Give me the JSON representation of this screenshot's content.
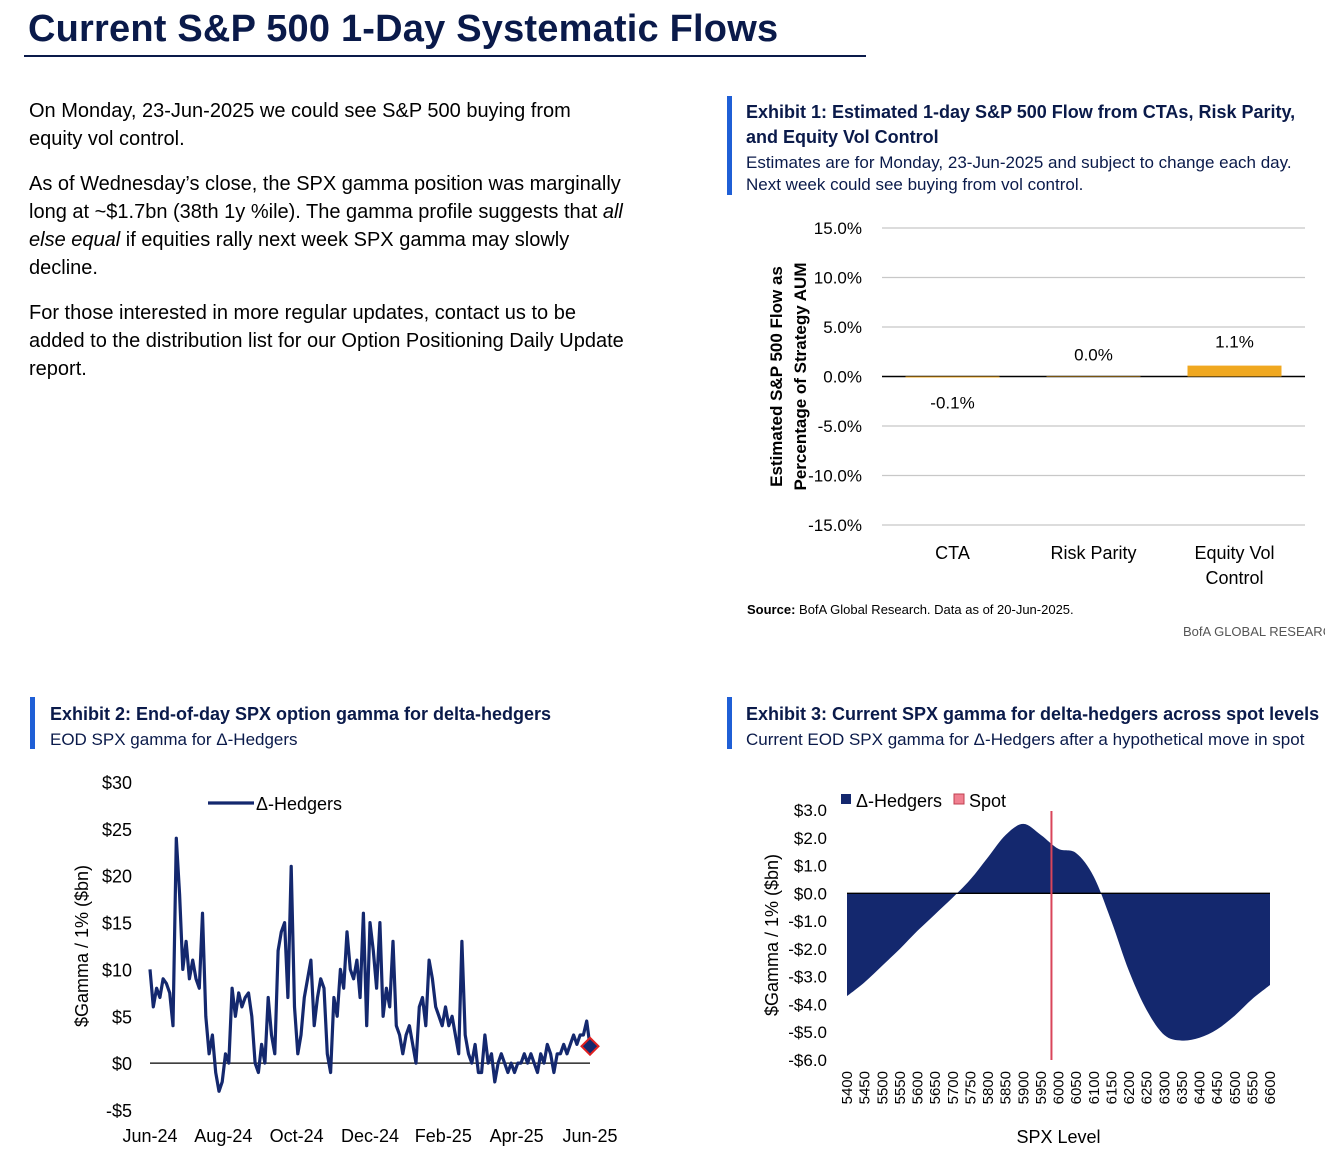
{
  "page": {
    "title": "Current S&P 500 1-Day Systematic Flows",
    "paragraphs": [
      {
        "text": "On Monday, 23-Jun-2025 we could see S&P 500 buying from equity vol control."
      },
      {
        "before": "As of Wednesday’s close, the SPX gamma position was marginally long at ~$1.7bn (38th 1y %ile).  The gamma profile suggests that ",
        "italic": "all else equal",
        "after": " if equities rally next week SPX gamma may slowly decline."
      },
      {
        "text": "For those interested in more regular updates, contact us to be added to the distribution list for our Option Positioning Daily Update report."
      }
    ]
  },
  "exhibit1": {
    "heading": "Exhibit 1: Estimated 1-day S&P 500 Flow from CTAs, Risk Parity, and Equity Vol Control",
    "subheading": "Estimates are for Monday, 23-Jun-2025 and subject to change each day. Next week could see buying from vol control.",
    "source_label": "Source:",
    "source_text": "BofA Global Research.  Data as of 20-Jun-2025.",
    "brand": "BofA GLOBAL RESEARCH"
  },
  "exhibit2": {
    "heading": "Exhibit 2: End-of-day SPX option gamma for delta-hedgers",
    "subheading": "EOD SPX gamma for Δ-Hedgers"
  },
  "exhibit3": {
    "heading": "Exhibit 3: Current SPX gamma for delta-hedgers across spot levels",
    "subheading": "Current EOD SPX gamma for Δ-Hedgers after a hypothetical move in spot"
  },
  "colors": {
    "navy": "#14286e",
    "accent_blue": "#1f5fd6",
    "bar_orange": "#f0a820",
    "spot_red": "#d9455a",
    "marker_red": "#e02020",
    "grid": "#c8c8c8"
  },
  "chart_data": [
    {
      "type": "bar",
      "categories": [
        "CTA",
        "Risk Parity",
        "Equity Vol Control"
      ],
      "category_labels": [
        [
          "CTA"
        ],
        [
          "Risk Parity"
        ],
        [
          "Equity Vol",
          "Control"
        ]
      ],
      "values": [
        -0.1,
        0.0,
        1.1
      ],
      "data_labels": [
        "-0.1%",
        "0.0%",
        "1.1%"
      ],
      "ylabel_lines": [
        "Estimated S&P 500 Flow as",
        "Percentage  of Strategy AUM"
      ],
      "ylim": [
        -15,
        15
      ],
      "yticks": [
        15,
        10,
        5,
        0,
        -5,
        -10,
        -15
      ],
      "ytick_labels": [
        "15.0%",
        "10.0%",
        "5.0%",
        "0.0%",
        "-5.0%",
        "-10.0%",
        "-15.0%"
      ],
      "grid": true
    },
    {
      "type": "line",
      "series": [
        {
          "name": "Δ-Hedgers",
          "x_start": "Jun-24",
          "x_end": "Jun-25",
          "values": [
            10,
            6,
            8,
            7,
            9,
            8.5,
            7.5,
            4,
            24,
            18,
            10,
            13,
            9,
            11,
            9,
            8,
            16,
            5,
            1,
            3,
            -1,
            -3,
            -2,
            1,
            0,
            8,
            5,
            7.5,
            6,
            7,
            7.5,
            5,
            0,
            -1,
            2,
            0,
            7,
            3,
            1,
            12,
            14,
            15,
            7,
            21,
            6,
            1,
            3,
            7,
            9,
            11,
            4,
            7,
            9,
            8,
            1,
            -1,
            7,
            5,
            10,
            8,
            14,
            10,
            9,
            11,
            7,
            16,
            4,
            15,
            12,
            8,
            15,
            5,
            8,
            6,
            13,
            4,
            3,
            1,
            3,
            4,
            2,
            0,
            6,
            7,
            4,
            11,
            9,
            6,
            5,
            4,
            6,
            4,
            5,
            3,
            1,
            13,
            3,
            1,
            0,
            2,
            -1,
            -1,
            3,
            0,
            1,
            -2,
            0,
            1,
            0,
            -1,
            0,
            -1,
            0,
            0,
            1,
            0,
            1,
            0,
            -1,
            1,
            0,
            2,
            1,
            -1,
            1,
            1,
            2,
            1,
            2,
            3,
            2,
            3,
            3,
            4.5,
            1.8
          ]
        }
      ],
      "last_marker": {
        "x": "Jun-25",
        "y": 1.8
      },
      "xtick_labels": [
        "Jun-24",
        "Aug-24",
        "Oct-24",
        "Dec-24",
        "Feb-25",
        "Apr-25",
        "Jun-25"
      ],
      "ylabel": "$Gamma / 1% ($bn)",
      "ylim": [
        -5,
        30
      ],
      "yticks": [
        30,
        25,
        20,
        15,
        10,
        5,
        0,
        -5
      ],
      "ytick_labels": [
        "$30",
        "$25",
        "$20",
        "$15",
        "$10",
        "$5",
        "$0",
        "-$5"
      ],
      "legend_placement": "top-left"
    },
    {
      "type": "area",
      "series": [
        {
          "name": "Δ-Hedgers",
          "x": [
            5400,
            5450,
            5500,
            5550,
            5600,
            5650,
            5700,
            5750,
            5800,
            5850,
            5900,
            5950,
            6000,
            6050,
            6100,
            6150,
            6200,
            6250,
            6300,
            6350,
            6400,
            6450,
            6500,
            6550,
            6600
          ],
          "values": [
            -3.7,
            -3.2,
            -2.6,
            -2.0,
            -1.35,
            -0.75,
            -0.15,
            0.5,
            1.3,
            2.1,
            2.5,
            2.1,
            1.6,
            1.45,
            0.6,
            -1.0,
            -2.8,
            -4.2,
            -5.1,
            -5.3,
            -5.2,
            -4.9,
            -4.4,
            -3.8,
            -3.3
          ]
        }
      ],
      "spot_series": {
        "name": "Spot",
        "x": 5980
      },
      "xlabel": "SPX Level",
      "xtick_labels": [
        "5400",
        "5450",
        "5500",
        "5550",
        "5600",
        "5650",
        "5700",
        "5750",
        "5800",
        "5850",
        "5900",
        "5950",
        "6000",
        "6050",
        "6100",
        "6150",
        "6200",
        "6250",
        "6300",
        "6350",
        "6400",
        "6450",
        "6500",
        "6550",
        "6600"
      ],
      "ylabel": "$Gamma / 1% ($bn)",
      "ylim": [
        -6,
        3
      ],
      "yticks": [
        3,
        2,
        1,
        0,
        -1,
        -2,
        -3,
        -4,
        -5,
        -6
      ],
      "ytick_labels": [
        "$3.0",
        "$2.0",
        "$1.0",
        "$0.0",
        "-$1.0",
        "-$2.0",
        "-$3.0",
        "-$4.0",
        "-$5.0",
        "-$6.0"
      ],
      "legend_placement": "top-left"
    }
  ]
}
